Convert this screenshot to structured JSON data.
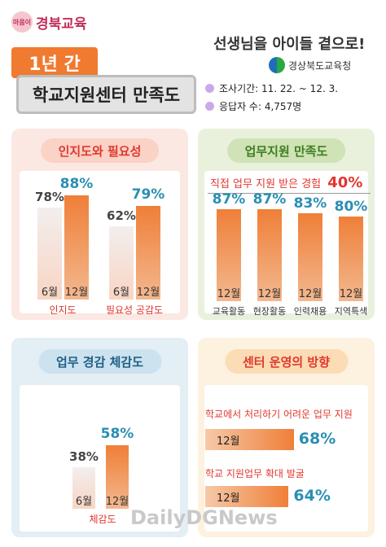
{
  "header": {
    "logo_seal": "마음이",
    "logo_text": "경북교육",
    "year_badge": "1년 간",
    "title": "학교지원센터 만족도",
    "slogan": "선생님을 아이들 곁으로!",
    "org": "경상북도교육청",
    "survey_period": "조사기간: 11. 22. ~ 12. 3.",
    "respondents": "응답자 수: 4,757명"
  },
  "colors": {
    "orange": "#ef7f38",
    "blue_value": "#2a8fb2",
    "red_label": "#e0382f",
    "panel_pink": "#fbe8e3",
    "panel_green": "#e9f1dd",
    "panel_blue": "#e3eef5",
    "panel_cream": "#fdf1df"
  },
  "chart_data": [
    {
      "type": "bar",
      "title": "인지도와 필요성",
      "categories": [
        "인지도",
        "필요성 공감도"
      ],
      "series": [
        {
          "name": "6월",
          "values": [
            78,
            62
          ]
        },
        {
          "name": "12월",
          "values": [
            88,
            79
          ]
        }
      ],
      "value_labels": {
        "6월": [
          "78%",
          "62%"
        ],
        "12월": [
          "88%",
          "79%"
        ]
      },
      "unit": "%"
    },
    {
      "type": "bar",
      "title": "업무지원 만족도",
      "note": "직접 업무 지원 받은 경험",
      "note_value": "40%",
      "categories": [
        "교육활동",
        "현장활동",
        "인력채용",
        "지역특색"
      ],
      "series": [
        {
          "name": "12월",
          "values": [
            87,
            87,
            83,
            80
          ]
        }
      ],
      "value_labels": [
        "87%",
        "87%",
        "83%",
        "80%"
      ],
      "unit": "%"
    },
    {
      "type": "bar",
      "title": "업무 경감 체감도",
      "categories": [
        "체감도"
      ],
      "series": [
        {
          "name": "6월",
          "values": [
            38
          ]
        },
        {
          "name": "12월",
          "values": [
            58
          ]
        }
      ],
      "value_labels": {
        "6월": [
          "38%"
        ],
        "12월": [
          "58%"
        ]
      },
      "unit": "%"
    },
    {
      "type": "bar",
      "title": "센터 운영의 방향",
      "categories": [
        "학교에서 처리하기 어려운 업무 지원",
        "학교 지원업무 확대 발굴"
      ],
      "series": [
        {
          "name": "12월",
          "values": [
            68,
            64
          ]
        }
      ],
      "value_labels": [
        "68%",
        "64%"
      ],
      "unit": "%"
    }
  ],
  "labels": {
    "month6": "6월",
    "month12": "12월"
  },
  "watermark": "DailyDGNews"
}
